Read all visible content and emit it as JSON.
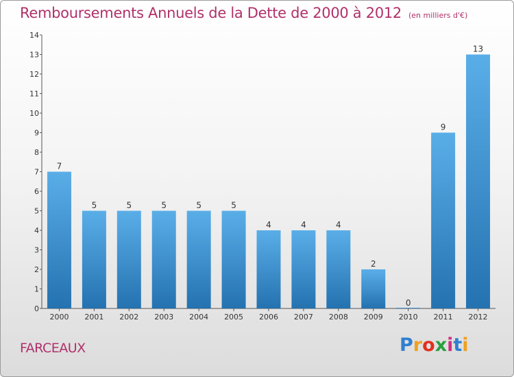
{
  "chart_data": {
    "type": "bar",
    "title": "Remboursements Annuels de la Dette de 2000 à 2012",
    "subtitle": "(en milliers d'€)",
    "categories": [
      "2000",
      "2001",
      "2002",
      "2003",
      "2004",
      "2005",
      "2006",
      "2007",
      "2008",
      "2009",
      "2010",
      "2011",
      "2012"
    ],
    "values": [
      7,
      5,
      5,
      5,
      5,
      5,
      4,
      4,
      4,
      2,
      0,
      9,
      13
    ],
    "ylim": [
      0,
      14
    ],
    "yticks": [
      0,
      1,
      2,
      3,
      4,
      5,
      6,
      7,
      8,
      9,
      10,
      11,
      12,
      13,
      14
    ],
    "grid": false,
    "bar_color": "#3a8fd0"
  },
  "commune": "FARCEAUX",
  "logo": {
    "letters": [
      "P",
      "r",
      "o",
      "x",
      "i",
      "t",
      "i"
    ],
    "colors": [
      "#2f7fd0",
      "#f0a020",
      "#e03020",
      "#2aa040",
      "#d03080",
      "#2f7fd0",
      "#f0a020"
    ]
  }
}
